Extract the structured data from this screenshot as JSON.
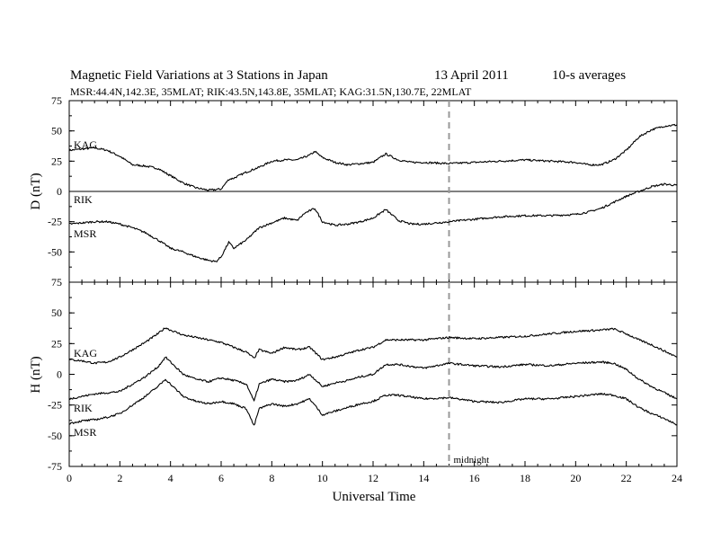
{
  "header": {
    "title": "Magnetic Field Variations at 3 Stations in Japan",
    "date": "13  April    2011",
    "averaging": "10-s averages",
    "stations_line": "MSR:44.4N,142.3E, 35MLAT;  RIK:43.5N,143.8E, 35MLAT;  KAG:31.5N,130.7E, 22MLAT"
  },
  "colors": {
    "trace": "#000000",
    "midline": "#999999"
  },
  "chart_data": [
    {
      "type": "line",
      "panel": "D",
      "ylabel": "D (nT)",
      "xlabel": "",
      "ylim": [
        -75,
        75
      ],
      "yticks": [
        -75,
        -50,
        -25,
        0,
        25,
        50,
        75
      ],
      "xlim": [
        0,
        24
      ],
      "zero_line": true,
      "series": [
        {
          "name": "KAG",
          "x": [
            0,
            0.5,
            1,
            1.5,
            2,
            2.5,
            3,
            3.5,
            4,
            4.5,
            5,
            5.5,
            6,
            6.3,
            6.5,
            7,
            7.5,
            8,
            8.5,
            9,
            9.5,
            9.7,
            10,
            10.5,
            11,
            11.5,
            12,
            12.5,
            13,
            13.5,
            14,
            15,
            16,
            17,
            18,
            19,
            20,
            20.5,
            21,
            21.5,
            22,
            22.5,
            23,
            23.5,
            24
          ],
          "y": [
            34,
            35,
            36,
            34,
            29,
            22,
            21,
            19,
            13,
            7,
            3,
            1,
            2,
            10,
            11,
            16,
            20,
            25,
            26,
            26,
            30,
            33,
            28,
            24,
            22,
            23,
            24,
            31,
            26,
            24,
            24,
            23,
            24,
            25,
            26,
            25,
            24,
            22,
            22,
            26,
            34,
            45,
            51,
            54,
            55
          ]
        },
        {
          "name": "RIK",
          "x": [
            0,
            15,
            16,
            17,
            18,
            19,
            20,
            20.5,
            21,
            21.5,
            22,
            22.5,
            23,
            23.5,
            24
          ],
          "y": [
            null,
            -25,
            -23,
            -21,
            -20,
            -20,
            -19,
            -17,
            -14,
            -9,
            -4,
            0,
            4,
            6,
            5
          ]
        },
        {
          "name": "MSR",
          "x": [
            0,
            0.5,
            1,
            1.5,
            2,
            2.5,
            3,
            3.5,
            4,
            4.5,
            5,
            5.5,
            5.8,
            6,
            6.3,
            6.5,
            7,
            7.5,
            8,
            8.5,
            9,
            9.3,
            9.7,
            10,
            10.5,
            11,
            11.5,
            12,
            12.5,
            13,
            13.5,
            14,
            15
          ],
          "y": [
            -27,
            -26,
            -25,
            -25,
            -27,
            -30,
            -34,
            -40,
            -47,
            -50,
            -54,
            -57,
            -58,
            -54,
            -42,
            -47,
            -40,
            -30,
            -26,
            -22,
            -24,
            -18,
            -14,
            -25,
            -28,
            -27,
            -25,
            -22,
            -15,
            -24,
            -27,
            -27,
            -25
          ]
        }
      ]
    },
    {
      "type": "line",
      "panel": "H",
      "ylabel": "H (nT)",
      "xlabel": "Universal Time",
      "ylim": [
        -75,
        75
      ],
      "yticks": [
        -75,
        -50,
        -25,
        0,
        25,
        50,
        75
      ],
      "xlim": [
        0,
        24
      ],
      "xticks": [
        0,
        2,
        4,
        6,
        8,
        10,
        12,
        14,
        16,
        18,
        20,
        22,
        24
      ],
      "zero_line": false,
      "series": [
        {
          "name": "KAG",
          "x": [
            0,
            0.5,
            1,
            1.5,
            2,
            2.5,
            3,
            3.5,
            3.8,
            4,
            4.5,
            5,
            5.5,
            6,
            6.5,
            7,
            7.3,
            7.5,
            8,
            8.5,
            9,
            9.5,
            10,
            10.5,
            11,
            11.5,
            12,
            12.5,
            13,
            14,
            15,
            16,
            17,
            18,
            19,
            20,
            21,
            21.5,
            22,
            22.5,
            23,
            23.5,
            24
          ],
          "y": [
            12,
            11,
            9,
            10,
            14,
            20,
            26,
            33,
            38,
            36,
            32,
            30,
            28,
            26,
            22,
            18,
            13,
            20,
            17,
            22,
            20,
            22,
            12,
            14,
            17,
            20,
            22,
            28,
            28,
            28,
            30,
            29,
            30,
            31,
            33,
            35,
            36,
            37,
            33,
            28,
            24,
            19,
            14
          ]
        },
        {
          "name": "RIK",
          "x": [
            0,
            0.5,
            1,
            1.5,
            2,
            2.5,
            3,
            3.5,
            3.8,
            4,
            4.5,
            5,
            5.5,
            6,
            6.5,
            7,
            7.3,
            7.5,
            8,
            8.5,
            9,
            9.5,
            10,
            10.5,
            11,
            11.5,
            12,
            12.5,
            13,
            14,
            15,
            16,
            17,
            18,
            19,
            20,
            21,
            21.5,
            22,
            22.5,
            23,
            23.5,
            24
          ],
          "y": [
            -20,
            -18,
            -16,
            -15,
            -14,
            -8,
            -2,
            6,
            14,
            10,
            0,
            -4,
            -6,
            -3,
            -5,
            -8,
            -22,
            -8,
            -4,
            -6,
            -5,
            0,
            -10,
            -7,
            -5,
            -2,
            0,
            8,
            8,
            5,
            9,
            7,
            6,
            8,
            7,
            9,
            10,
            9,
            4,
            -4,
            -10,
            -15,
            -20
          ]
        },
        {
          "name": "MSR",
          "x": [
            0,
            0.5,
            1,
            1.5,
            2,
            2.5,
            3,
            3.5,
            3.8,
            4,
            4.5,
            5,
            5.5,
            6,
            6.5,
            7,
            7.3,
            7.5,
            8,
            8.5,
            9,
            9.5,
            10,
            10.5,
            11,
            11.5,
            12,
            12.5,
            13,
            14,
            15,
            16,
            17,
            18,
            19,
            20,
            21,
            21.5,
            22,
            22.5,
            23,
            23.5,
            24
          ],
          "y": [
            -40,
            -38,
            -37,
            -35,
            -32,
            -25,
            -18,
            -10,
            -4,
            -8,
            -18,
            -22,
            -24,
            -22,
            -24,
            -28,
            -42,
            -28,
            -24,
            -26,
            -24,
            -20,
            -33,
            -30,
            -27,
            -24,
            -22,
            -17,
            -17,
            -20,
            -19,
            -22,
            -23,
            -20,
            -20,
            -18,
            -16,
            -17,
            -20,
            -27,
            -32,
            -36,
            -41
          ]
        }
      ]
    }
  ],
  "annotations": {
    "midnight_x": 15,
    "midnight_label": "midnight"
  }
}
